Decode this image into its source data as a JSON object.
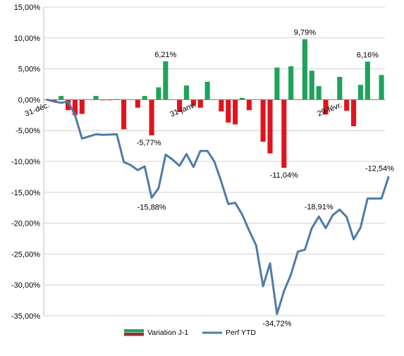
{
  "chart_data": {
    "type": "bar",
    "title": "",
    "ylim": [
      -35,
      15
    ],
    "y_ticks": [
      15,
      10,
      5,
      0,
      -5,
      -10,
      -15,
      -20,
      -25,
      -30,
      -35
    ],
    "y_tick_labels": [
      "15,00%",
      "10,00%",
      "5,00%",
      "0,00%",
      "-5,00%",
      "-10,00%",
      "-15,00%",
      "-20,00%",
      "-25,00%",
      "-30,00%",
      "-35,00%"
    ],
    "grid": true,
    "legend_position": "bottom",
    "x_tick_labels": [
      {
        "index": 0,
        "label": "31-déc."
      },
      {
        "index": 21,
        "label": "31-janv."
      },
      {
        "index": 42,
        "label": "29-févr."
      }
    ],
    "positive_color": "#1fa25a",
    "negative_color": "#e0141e",
    "line_color": "#4f7ba8",
    "series": [
      {
        "name": "Variation J-1",
        "type": "bar",
        "values": [
          0.0,
          -0.3,
          0.6,
          -1.7,
          -2.5,
          -2.3,
          0.0,
          0.6,
          -0.1,
          -0.1,
          0.1,
          -4.8,
          0.0,
          -1.3,
          0.6,
          -5.77,
          2.0,
          6.21,
          0.0,
          -2.0,
          2.3,
          -1.0,
          -1.3,
          2.9,
          0.0,
          -1.9,
          -3.7,
          -4.0,
          0.3,
          -1.7,
          0.0,
          -6.8,
          -8.7,
          5.2,
          -11.04,
          5.4,
          0.0,
          9.79,
          4.7,
          2.2,
          -2.4,
          0.0,
          3.7,
          -1.8,
          -4.3,
          2.4,
          6.16,
          0.0,
          4.0
        ]
      },
      {
        "name": "Perf YTD",
        "type": "line",
        "points": [
          [
            0,
            0.0
          ],
          [
            1,
            -0.3
          ],
          [
            2,
            -0.5
          ],
          [
            3,
            -0.3
          ],
          [
            4,
            -2.5
          ],
          [
            5,
            -6.3
          ],
          [
            7,
            -5.6
          ],
          [
            8,
            -5.7
          ],
          [
            10,
            -5.6
          ],
          [
            11,
            -10.1
          ],
          [
            12,
            -10.6
          ],
          [
            13,
            -11.4
          ],
          [
            14,
            -10.8
          ],
          [
            15,
            -15.88
          ],
          [
            16,
            -14.3
          ],
          [
            17,
            -8.9
          ],
          [
            18,
            -9.7
          ],
          [
            19,
            -10.7
          ],
          [
            20,
            -8.8
          ],
          [
            21,
            -10.9
          ],
          [
            22,
            -8.3
          ],
          [
            23,
            -8.3
          ],
          [
            24,
            -10.0
          ],
          [
            25,
            -13.3
          ],
          [
            26,
            -16.9
          ],
          [
            27,
            -16.7
          ],
          [
            28,
            -18.6
          ],
          [
            29,
            -21.2
          ],
          [
            30,
            -23.6
          ],
          [
            31,
            -30.2
          ],
          [
            32,
            -26.5
          ],
          [
            33,
            -34.72
          ],
          [
            34,
            -31.0
          ],
          [
            35,
            -28.3
          ],
          [
            36,
            -24.6
          ],
          [
            37,
            -24.3
          ],
          [
            38,
            -20.8
          ],
          [
            39,
            -18.91
          ],
          [
            40,
            -20.8
          ],
          [
            41,
            -18.7
          ],
          [
            42,
            -17.8
          ],
          [
            43,
            -19.0
          ],
          [
            44,
            -22.6
          ],
          [
            45,
            -20.7
          ],
          [
            46,
            -16.0
          ],
          [
            47,
            -16.0
          ],
          [
            48,
            -16.0
          ],
          [
            49,
            -12.54
          ]
        ]
      }
    ],
    "annotations": [
      {
        "series": "Variation J-1",
        "index": 17,
        "label": "6,21%"
      },
      {
        "series": "Variation J-1",
        "index": 15,
        "label": "-5,77%"
      },
      {
        "series": "Variation J-1",
        "index": 37,
        "label": "9,79%"
      },
      {
        "series": "Variation J-1",
        "index": 34,
        "label": "-11,04%"
      },
      {
        "series": "Variation J-1",
        "index": 46,
        "label": "6,16%"
      },
      {
        "series": "Perf YTD",
        "index": 15,
        "label": "-15,88%"
      },
      {
        "series": "Perf YTD",
        "index": 33,
        "label": "-34,72%"
      },
      {
        "series": "Perf YTD",
        "index": 39,
        "label": "-18,91%"
      },
      {
        "series": "Perf YTD",
        "index": 49,
        "label": "-12,54%"
      }
    ]
  },
  "legend": {
    "bar_label": "Variation J-1",
    "line_label": "Perf YTD"
  }
}
